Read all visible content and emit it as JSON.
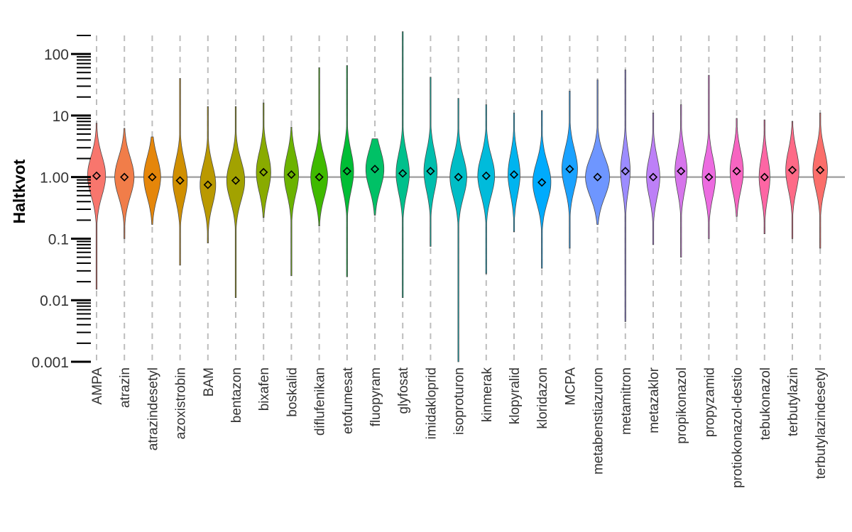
{
  "chart_data": {
    "type": "violin",
    "title": "",
    "xlabel": "",
    "ylabel": "Haltkvot",
    "yscale": "log",
    "ylim": [
      0.001,
      200
    ],
    "yticks": [
      0.001,
      0.01,
      0.1,
      1,
      10,
      100
    ],
    "ytick_labels": [
      "0.001",
      "0.01",
      "0.1",
      "1.00",
      "10",
      "100"
    ],
    "reference_line": 1.0,
    "grid": "vertical dashed at each category",
    "legend": "none",
    "categories": [
      "AMPA",
      "atrazin",
      "atrazindesetyl",
      "azoxistrobin",
      "BAM",
      "bentazon",
      "bixafen",
      "boskalid",
      "diflufenikan",
      "etofumesat",
      "fluopyram",
      "glyfosat",
      "imidakloprid",
      "isoproturon",
      "kinmerak",
      "klopyralid",
      "kloridazon",
      "MCPA",
      "metabenstiazuron",
      "metamitron",
      "metazaklor",
      "propikonazol",
      "propyzamid",
      "protiokonazol-destio",
      "tebukonazol",
      "terbutylazin",
      "terbutylazindesetyl"
    ],
    "colors": [
      "#F8766D",
      "#F17D49",
      "#E5860A",
      "#D08F00",
      "#BA9900",
      "#A2A200",
      "#89AB00",
      "#6BB300",
      "#3FBA00",
      "#00BD35",
      "#00C166",
      "#00C08C",
      "#00BEAD",
      "#00BDC6",
      "#00BBDB",
      "#00B4EF",
      "#00ABFD",
      "#1AA2FF",
      "#6E96FF",
      "#9C8CFF",
      "#BD80F7",
      "#D675EB",
      "#EC6BE0",
      "#F765C1",
      "#FD66A4",
      "#FE6A87",
      "#FB6E6A"
    ],
    "medians": [
      1.05,
      1.0,
      1.0,
      0.88,
      0.75,
      0.88,
      1.2,
      1.1,
      1.0,
      1.25,
      1.35,
      1.15,
      1.25,
      1.0,
      1.05,
      1.1,
      0.82,
      1.35,
      1.0,
      1.25,
      1.0,
      1.25,
      1.0,
      1.25,
      1.0,
      1.3,
      1.3
    ],
    "mins": [
      0.015,
      0.1,
      0.17,
      0.037,
      0.085,
      0.011,
      0.22,
      0.025,
      0.16,
      0.024,
      0.24,
      0.011,
      0.075,
      0.001,
      0.027,
      0.13,
      0.033,
      0.07,
      0.17,
      0.0045,
      0.08,
      0.05,
      0.1,
      0.23,
      0.12,
      0.1,
      0.07
    ],
    "maxs": [
      7.5,
      6.2,
      4.5,
      40,
      14,
      14,
      16,
      6.5,
      60,
      65,
      4.2,
      230,
      42,
      19,
      15,
      11,
      12,
      25,
      38,
      55,
      11,
      15,
      45,
      9,
      8.5,
      8,
      11
    ],
    "widths": [
      0.75,
      0.8,
      0.7,
      0.6,
      0.65,
      0.75,
      0.6,
      0.6,
      0.7,
      0.55,
      0.75,
      0.55,
      0.55,
      0.7,
      0.7,
      0.5,
      0.75,
      0.65,
      1.0,
      0.4,
      0.55,
      0.5,
      0.55,
      0.55,
      0.45,
      0.55,
      0.6
    ]
  }
}
